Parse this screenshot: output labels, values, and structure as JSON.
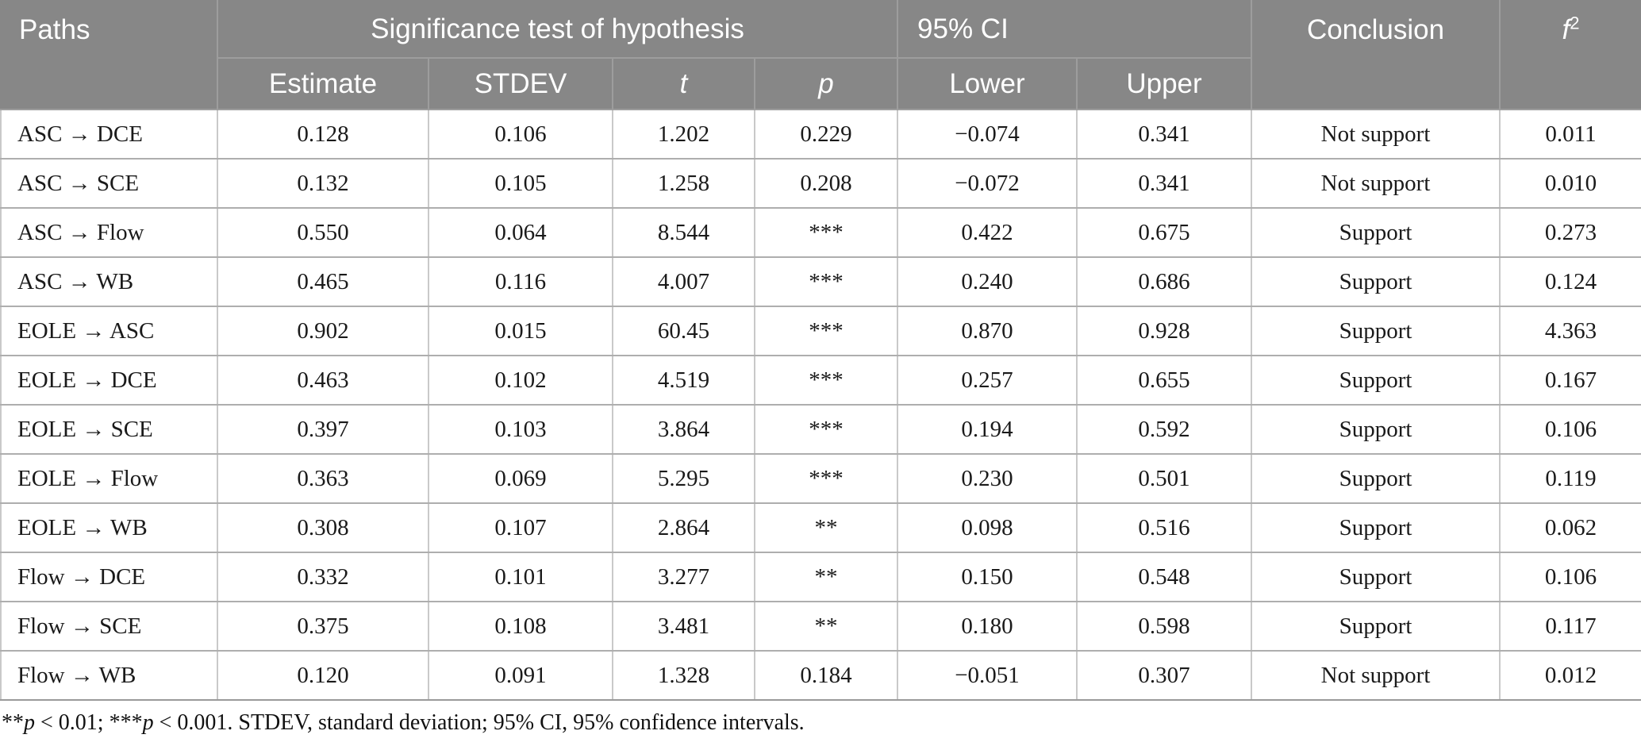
{
  "header": {
    "paths": "Paths",
    "significance_group": "Significance test of hypothesis",
    "ci_group": "95% CI",
    "conclusion": "Conclusion",
    "f2_base": "f",
    "f2_sup": "2",
    "sub": [
      "Estimate",
      "STDEV",
      "t",
      "p",
      "Lower",
      "Upper"
    ]
  },
  "rows": [
    {
      "path": "ASC → DCE",
      "estimate": "0.128",
      "stdev": "0.106",
      "t": "1.202",
      "p": "0.229",
      "lower": "−0.074",
      "upper": "0.341",
      "conclusion": "Not support",
      "f2": "0.011"
    },
    {
      "path": "ASC → SCE",
      "estimate": "0.132",
      "stdev": "0.105",
      "t": "1.258",
      "p": "0.208",
      "lower": "−0.072",
      "upper": "0.341",
      "conclusion": "Not support",
      "f2": "0.010"
    },
    {
      "path": "ASC → Flow",
      "estimate": "0.550",
      "stdev": "0.064",
      "t": "8.544",
      "p": "***",
      "lower": "0.422",
      "upper": "0.675",
      "conclusion": "Support",
      "f2": "0.273"
    },
    {
      "path": "ASC → WB",
      "estimate": "0.465",
      "stdev": "0.116",
      "t": "4.007",
      "p": "***",
      "lower": "0.240",
      "upper": "0.686",
      "conclusion": "Support",
      "f2": "0.124"
    },
    {
      "path": "EOLE → ASC",
      "estimate": "0.902",
      "stdev": "0.015",
      "t": "60.45",
      "p": "***",
      "lower": "0.870",
      "upper": "0.928",
      "conclusion": "Support",
      "f2": "4.363"
    },
    {
      "path": "EOLE → DCE",
      "estimate": "0.463",
      "stdev": "0.102",
      "t": "4.519",
      "p": "***",
      "lower": "0.257",
      "upper": "0.655",
      "conclusion": "Support",
      "f2": "0.167"
    },
    {
      "path": "EOLE → SCE",
      "estimate": "0.397",
      "stdev": "0.103",
      "t": "3.864",
      "p": "***",
      "lower": "0.194",
      "upper": "0.592",
      "conclusion": "Support",
      "f2": "0.106"
    },
    {
      "path": "EOLE → Flow",
      "estimate": "0.363",
      "stdev": "0.069",
      "t": "5.295",
      "p": "***",
      "lower": "0.230",
      "upper": "0.501",
      "conclusion": "Support",
      "f2": "0.119"
    },
    {
      "path": "EOLE → WB",
      "estimate": "0.308",
      "stdev": "0.107",
      "t": "2.864",
      "p": "**",
      "lower": "0.098",
      "upper": "0.516",
      "conclusion": "Support",
      "f2": "0.062"
    },
    {
      "path": "Flow → DCE",
      "estimate": "0.332",
      "stdev": "0.101",
      "t": "3.277",
      "p": "**",
      "lower": "0.150",
      "upper": "0.548",
      "conclusion": "Support",
      "f2": "0.106"
    },
    {
      "path": "Flow → SCE",
      "estimate": "0.375",
      "stdev": "0.108",
      "t": "3.481",
      "p": "**",
      "lower": "0.180",
      "upper": "0.598",
      "conclusion": "Support",
      "f2": "0.117"
    },
    {
      "path": "Flow → WB",
      "estimate": "0.120",
      "stdev": "0.091",
      "t": "1.328",
      "p": "0.184",
      "lower": "−0.051",
      "upper": "0.307",
      "conclusion": "Not support",
      "f2": "0.012"
    }
  ],
  "footnote": {
    "segments": [
      {
        "text": "**"
      },
      {
        "text": "p",
        "italic": true
      },
      {
        "text": " < 0.01; ***"
      },
      {
        "text": "p",
        "italic": true
      },
      {
        "text": " < 0.001. STDEV, standard deviation; 95% CI, 95% confidence intervals."
      }
    ]
  },
  "colors": {
    "header_bg": "#878787",
    "header_text": "#ffffff",
    "header_divider": "#9d9d9d",
    "body_text": "#1a1a1a",
    "grid_vertical": "#c9c9c9",
    "grid_horizontal": "#aeaeae",
    "table_bottom_border": "#9a9a9a"
  }
}
